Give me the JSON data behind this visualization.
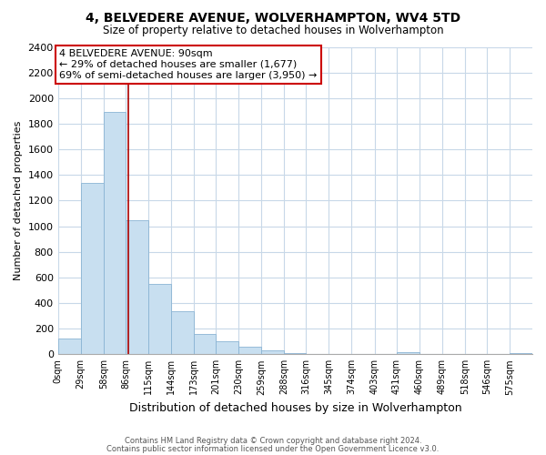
{
  "title": "4, BELVEDERE AVENUE, WOLVERHAMPTON, WV4 5TD",
  "subtitle": "Size of property relative to detached houses in Wolverhampton",
  "xlabel": "Distribution of detached houses by size in Wolverhampton",
  "ylabel": "Number of detached properties",
  "bar_color": "#c8dff0",
  "bar_edge_color": "#8ab4d4",
  "background_color": "#ffffff",
  "grid_color": "#c8d8e8",
  "bin_labels": [
    "0sqm",
    "29sqm",
    "58sqm",
    "86sqm",
    "115sqm",
    "144sqm",
    "173sqm",
    "201sqm",
    "230sqm",
    "259sqm",
    "288sqm",
    "316sqm",
    "345sqm",
    "374sqm",
    "403sqm",
    "431sqm",
    "460sqm",
    "489sqm",
    "518sqm",
    "546sqm",
    "575sqm"
  ],
  "bar_heights": [
    125,
    1340,
    1890,
    1050,
    550,
    335,
    160,
    105,
    60,
    28,
    10,
    4,
    1,
    0,
    0,
    15,
    0,
    0,
    0,
    0,
    10
  ],
  "bin_edges": [
    0,
    29,
    58,
    86,
    115,
    144,
    173,
    201,
    230,
    259,
    288,
    316,
    345,
    374,
    403,
    431,
    460,
    489,
    518,
    546,
    575,
    604
  ],
  "ylim": [
    0,
    2400
  ],
  "yticks": [
    0,
    200,
    400,
    600,
    800,
    1000,
    1200,
    1400,
    1600,
    1800,
    2000,
    2200,
    2400
  ],
  "annotation_title": "4 BELVEDERE AVENUE: 90sqm",
  "annotation_line1": "← 29% of detached houses are smaller (1,677)",
  "annotation_line2": "69% of semi-detached houses are larger (3,950) →",
  "annotation_box_edge": "#cc0000",
  "property_line_x": 90,
  "property_line_color": "#aa0000",
  "footnote1": "Contains HM Land Registry data © Crown copyright and database right 2024.",
  "footnote2": "Contains public sector information licensed under the Open Government Licence v3.0."
}
